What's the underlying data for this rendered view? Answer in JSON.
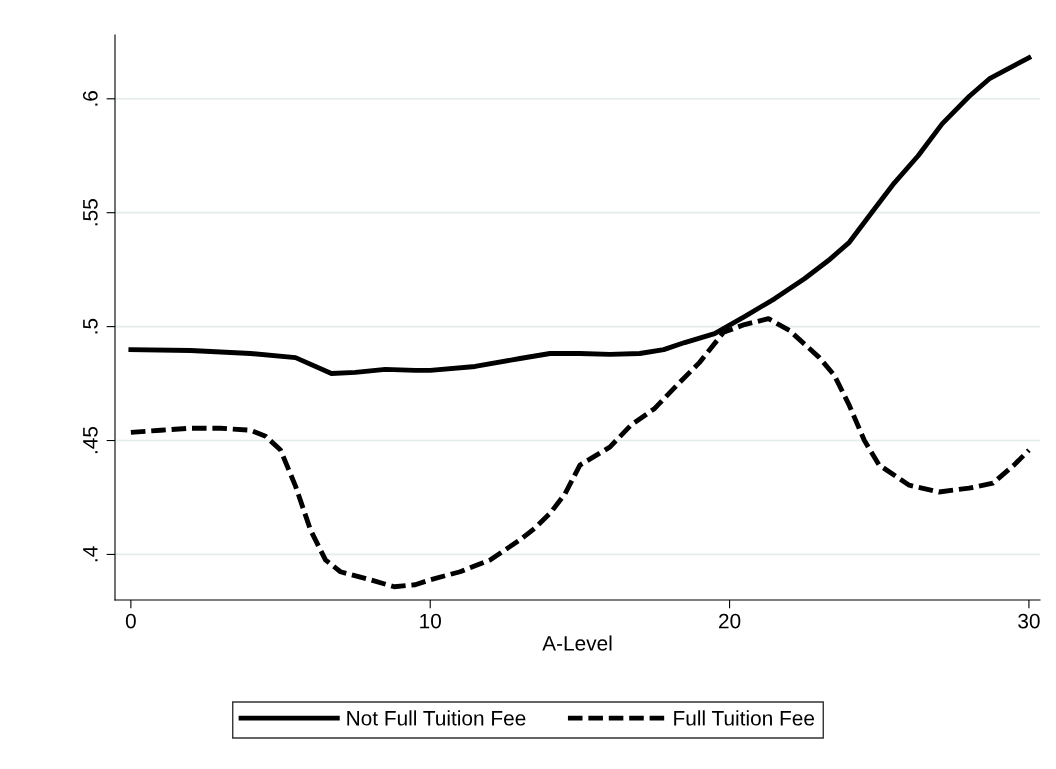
{
  "chart_data": {
    "type": "line",
    "xlabel": "A-Level",
    "xlim": [
      -0.53,
      30.37
    ],
    "xticks": [
      0,
      10,
      20,
      30
    ],
    "ylim": [
      0.38,
      0.628
    ],
    "yticks": [
      {
        "value": 0.4,
        "label": ".4"
      },
      {
        "value": 0.45,
        "label": ".45"
      },
      {
        "value": 0.5,
        "label": ".5"
      },
      {
        "value": 0.55,
        "label": ".55"
      },
      {
        "value": 0.6,
        "label": ".6"
      }
    ],
    "grid": "y",
    "legend": "bottom",
    "marker": "none",
    "series": [
      {
        "name": "Not Full Tuition Fee",
        "color": "#000000",
        "line_style": "solid",
        "x": [
          0,
          2,
          4,
          5.5,
          6.7,
          7.5,
          8.5,
          9.5,
          10,
          11.5,
          13,
          14,
          15,
          16,
          17,
          17.8,
          18.5,
          19.5,
          20.5,
          21.5,
          22.5,
          23.3,
          24,
          24.8,
          25.5,
          26.3,
          27.1,
          28,
          28.7,
          30
        ],
        "values": [
          0.4899,
          0.4895,
          0.4882,
          0.4864,
          0.4794,
          0.4799,
          0.4812,
          0.4808,
          0.4808,
          0.4825,
          0.486,
          0.4882,
          0.4882,
          0.4878,
          0.4882,
          0.4899,
          0.493,
          0.4969,
          0.5044,
          0.5122,
          0.521,
          0.529,
          0.537,
          0.551,
          0.563,
          0.575,
          0.589,
          0.601,
          0.609,
          0.618
        ]
      },
      {
        "name": "Full Tuition Fee",
        "color": "#000000",
        "line_style": "dashed",
        "x": [
          0,
          1,
          2,
          3,
          4,
          4.5,
          5,
          5.5,
          6,
          6.5,
          7,
          8,
          8.8,
          9.5,
          10,
          11,
          12,
          13,
          13.5,
          14,
          14.5,
          15,
          16,
          16.7,
          17.5,
          18.3,
          19,
          19.8,
          20.5,
          21.3,
          22,
          23,
          23.5,
          24,
          24.5,
          25,
          26,
          27,
          28,
          28.8,
          29.5,
          30
        ],
        "values": [
          0.4536,
          0.4545,
          0.4554,
          0.4554,
          0.4545,
          0.4519,
          0.4458,
          0.43,
          0.4108,
          0.3976,
          0.3924,
          0.3889,
          0.3858,
          0.3867,
          0.3889,
          0.3924,
          0.3976,
          0.4064,
          0.4116,
          0.418,
          0.4265,
          0.4392,
          0.4471,
          0.4567,
          0.4641,
          0.4751,
          0.4843,
          0.4975,
          0.5009,
          0.5035,
          0.4983,
          0.4864,
          0.4786,
          0.4654,
          0.4501,
          0.4392,
          0.4304,
          0.4274,
          0.4291,
          0.4313,
          0.4392,
          0.4458
        ]
      }
    ]
  }
}
